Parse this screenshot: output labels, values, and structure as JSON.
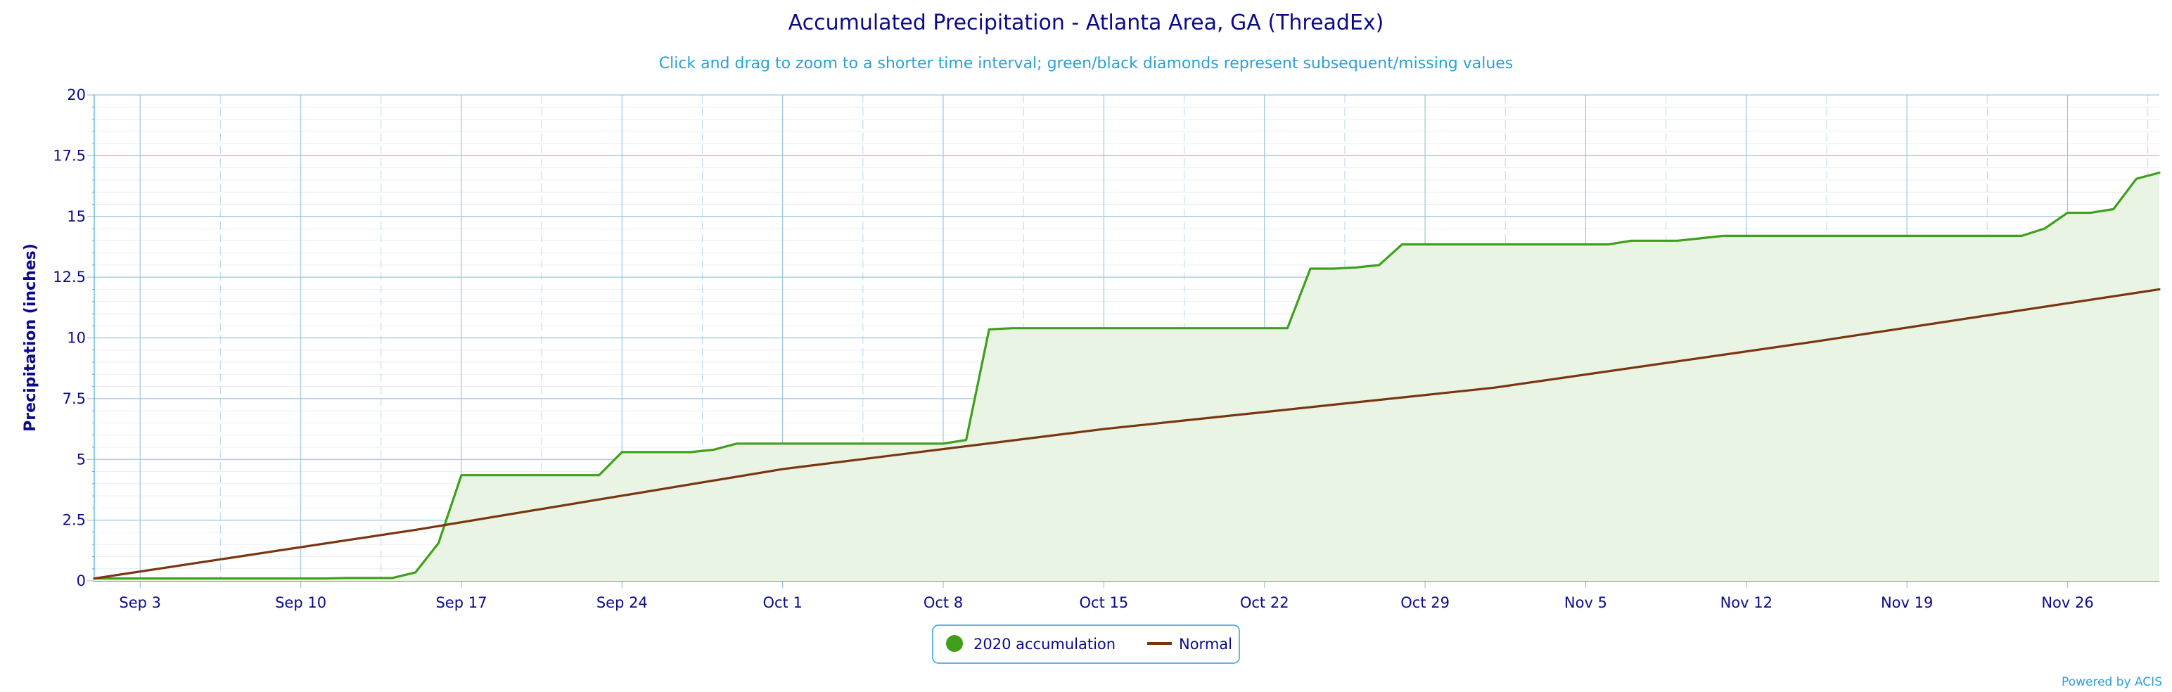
{
  "chart_data": {
    "type": "area",
    "title": "Accumulated Precipitation - Atlanta Area, GA (ThreadEx)",
    "subtitle": "Click and drag to zoom to a shorter time interval; green/black diamonds represent subsequent/missing values",
    "xlabel": "",
    "ylabel": "Precipitation (inches)",
    "ylim": [
      0,
      20
    ],
    "yticks": [
      "0",
      "2.5",
      "5",
      "7.5",
      "10",
      "12.5",
      "15",
      "17.5",
      "20"
    ],
    "xtick_labels": [
      "Sep 3",
      "Sep 10",
      "Sep 17",
      "Sep 24",
      "Oct 1",
      "Oct 8",
      "Oct 15",
      "Oct 22",
      "Oct 29",
      "Nov 5",
      "Nov 12",
      "Nov 19",
      "Nov 26"
    ],
    "x_range": [
      "Sep 1",
      "Nov 30"
    ],
    "grid": true,
    "legend_position": "bottom-center",
    "series": [
      {
        "name": "2020 accumulation",
        "color": "#3f9f1a",
        "fill": "#e9f4e4",
        "style": "area",
        "x": [
          "Sep 1",
          "Sep 2",
          "Sep 3",
          "Sep 4",
          "Sep 5",
          "Sep 6",
          "Sep 7",
          "Sep 8",
          "Sep 9",
          "Sep 10",
          "Sep 11",
          "Sep 12",
          "Sep 13",
          "Sep 14",
          "Sep 15",
          "Sep 16",
          "Sep 17",
          "Sep 18",
          "Sep 19",
          "Sep 20",
          "Sep 21",
          "Sep 22",
          "Sep 23",
          "Sep 24",
          "Sep 25",
          "Sep 26",
          "Sep 27",
          "Sep 28",
          "Sep 29",
          "Sep 30",
          "Oct 1",
          "Oct 2",
          "Oct 3",
          "Oct 4",
          "Oct 5",
          "Oct 6",
          "Oct 7",
          "Oct 8",
          "Oct 9",
          "Oct 10",
          "Oct 11",
          "Oct 12",
          "Oct 13",
          "Oct 14",
          "Oct 15",
          "Oct 16",
          "Oct 17",
          "Oct 18",
          "Oct 19",
          "Oct 20",
          "Oct 21",
          "Oct 22",
          "Oct 23",
          "Oct 24",
          "Oct 25",
          "Oct 26",
          "Oct 27",
          "Oct 28",
          "Oct 29",
          "Oct 30",
          "Oct 31",
          "Nov 1",
          "Nov 2",
          "Nov 3",
          "Nov 4",
          "Nov 5",
          "Nov 6",
          "Nov 7",
          "Nov 8",
          "Nov 9",
          "Nov 10",
          "Nov 11",
          "Nov 12",
          "Nov 13",
          "Nov 14",
          "Nov 15",
          "Nov 16",
          "Nov 17",
          "Nov 18",
          "Nov 19",
          "Nov 20",
          "Nov 21",
          "Nov 22",
          "Nov 23",
          "Nov 24",
          "Nov 25",
          "Nov 26",
          "Nov 27",
          "Nov 28",
          "Nov 29",
          "Nov 30"
        ],
        "values": [
          0.1,
          0.1,
          0.1,
          0.1,
          0.1,
          0.1,
          0.1,
          0.1,
          0.1,
          0.1,
          0.1,
          0.12,
          0.12,
          0.12,
          0.35,
          1.55,
          4.35,
          4.35,
          4.35,
          4.35,
          4.35,
          4.35,
          4.35,
          5.3,
          5.3,
          5.3,
          5.3,
          5.4,
          5.65,
          5.65,
          5.65,
          5.65,
          5.65,
          5.65,
          5.65,
          5.65,
          5.65,
          5.65,
          5.8,
          10.35,
          10.4,
          10.4,
          10.4,
          10.4,
          10.4,
          10.4,
          10.4,
          10.4,
          10.4,
          10.4,
          10.4,
          10.4,
          10.4,
          12.85,
          12.85,
          12.9,
          13.0,
          13.85,
          13.85,
          13.85,
          13.85,
          13.85,
          13.85,
          13.85,
          13.85,
          13.85,
          13.85,
          14.0,
          14.0,
          14.0,
          14.1,
          14.2,
          14.2,
          14.2,
          14.2,
          14.2,
          14.2,
          14.2,
          14.2,
          14.2,
          14.2,
          14.2,
          14.2,
          14.2,
          14.2,
          14.5,
          15.15,
          15.15,
          15.3,
          16.55,
          16.8
        ]
      },
      {
        "name": "Normal",
        "color": "#7a3510",
        "style": "line",
        "x": [
          "Sep 1",
          "Sep 15",
          "Oct 1",
          "Oct 15",
          "Nov 1",
          "Nov 15",
          "Nov 30"
        ],
        "values": [
          0.1,
          2.1,
          4.6,
          6.25,
          7.95,
          9.85,
          12.0
        ]
      }
    ]
  },
  "footer": {
    "credit": "Powered by ACIS"
  }
}
